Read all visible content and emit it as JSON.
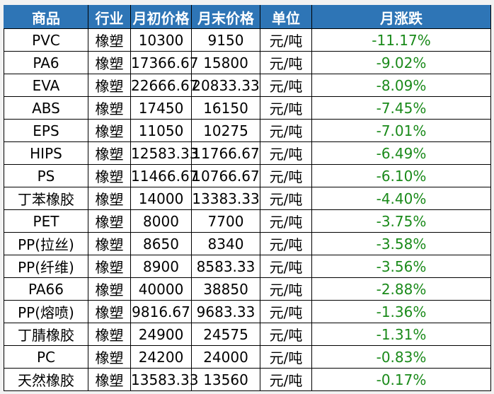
{
  "headers": [
    "商品",
    "行业",
    "月初价格",
    "月末价格",
    "单位",
    "月涨跌"
  ],
  "change_color": "#1a8a1a",
  "header_color": "#2e75b6",
  "rows": [
    [
      "PVC",
      "橡塑",
      "10300",
      "9150",
      "元/吨",
      "-11.17%"
    ],
    [
      "PA6",
      "橡塑",
      "17366.67",
      "15800",
      "元/吨",
      "-9.02%"
    ],
    [
      "EVA",
      "橡塑",
      "22666.67",
      "20833.33",
      "元/吨",
      "-8.09%"
    ],
    [
      "ABS",
      "橡塑",
      "17450",
      "16150",
      "元/吨",
      "-7.45%"
    ],
    [
      "EPS",
      "橡塑",
      "11050",
      "10275",
      "元/吨",
      "-7.01%"
    ],
    [
      "HIPS",
      "橡塑",
      "12583.33",
      "11766.67",
      "元/吨",
      "-6.49%"
    ],
    [
      "PS",
      "橡塑",
      "11466.67",
      "10766.67",
      "元/吨",
      "-6.10%"
    ],
    [
      "丁苯橡胶",
      "橡塑",
      "14000",
      "13383.33",
      "元/吨",
      "-4.40%"
    ],
    [
      "PET",
      "橡塑",
      "8000",
      "7700",
      "元/吨",
      "-3.75%"
    ],
    [
      "PP(拉丝)",
      "橡塑",
      "8650",
      "8340",
      "元/吨",
      "-3.58%"
    ],
    [
      "PP(纤维)",
      "橡塑",
      "8900",
      "8583.33",
      "元/吨",
      "-3.56%"
    ],
    [
      "PA66",
      "橡塑",
      "40000",
      "38850",
      "元/吨",
      "-2.88%"
    ],
    [
      "PP(熔喷)",
      "橡塑",
      "9816.67",
      "9683.33",
      "元/吨",
      "-1.36%"
    ],
    [
      "丁腈橡胶",
      "橡塑",
      "24900",
      "24575",
      "元/吨",
      "-1.31%"
    ],
    [
      "PC",
      "橡塑",
      "24200",
      "24000",
      "元/吨",
      "-0.83%"
    ],
    [
      "天然橡胶",
      "橡塑",
      "13583.33",
      "13560",
      "元/吨",
      "-0.17%"
    ]
  ]
}
